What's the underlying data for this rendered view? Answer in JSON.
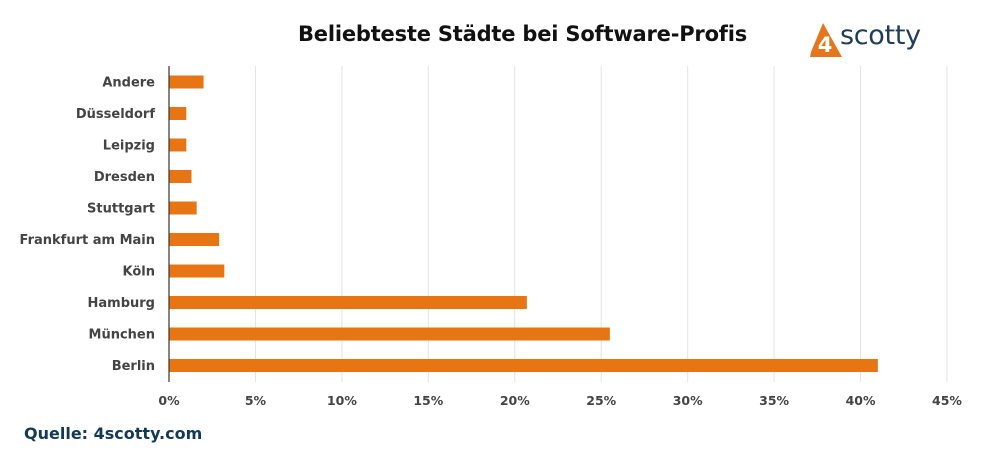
{
  "header": {
    "title": "Beliebteste Städte bei Software-Profis"
  },
  "logo": {
    "digit": "4",
    "word": "scotty",
    "mark_color": "#e5761b",
    "text_color": "#1e3d58"
  },
  "footer": {
    "source": "Quelle: 4scotty.com"
  },
  "colors": {
    "bar": "#e87513",
    "grid": "#e3e3e3",
    "axis": "#333333",
    "source_text": "#113a57"
  },
  "chart_data": {
    "type": "bar",
    "orientation": "horizontal",
    "title": "Beliebteste Städte bei Software-Profis",
    "xlabel": "",
    "ylabel": "",
    "categories": [
      "Andere",
      "Düsseldorf",
      "Leipzig",
      "Dresden",
      "Stuttgart",
      "Frankfurt am Main",
      "Köln",
      "Hamburg",
      "München",
      "Berlin"
    ],
    "values": [
      2,
      1,
      1,
      1.3,
      1.6,
      2.9,
      3.2,
      20.7,
      25.5,
      41
    ],
    "xlim": [
      0,
      45
    ],
    "xticks": [
      0,
      5,
      10,
      15,
      20,
      25,
      30,
      35,
      40,
      45
    ],
    "tick_labels": [
      "0%",
      "5%",
      "10%",
      "15%",
      "20%",
      "25%",
      "30%",
      "35%",
      "40%",
      "45%"
    ],
    "grid": true,
    "legend": "none"
  }
}
